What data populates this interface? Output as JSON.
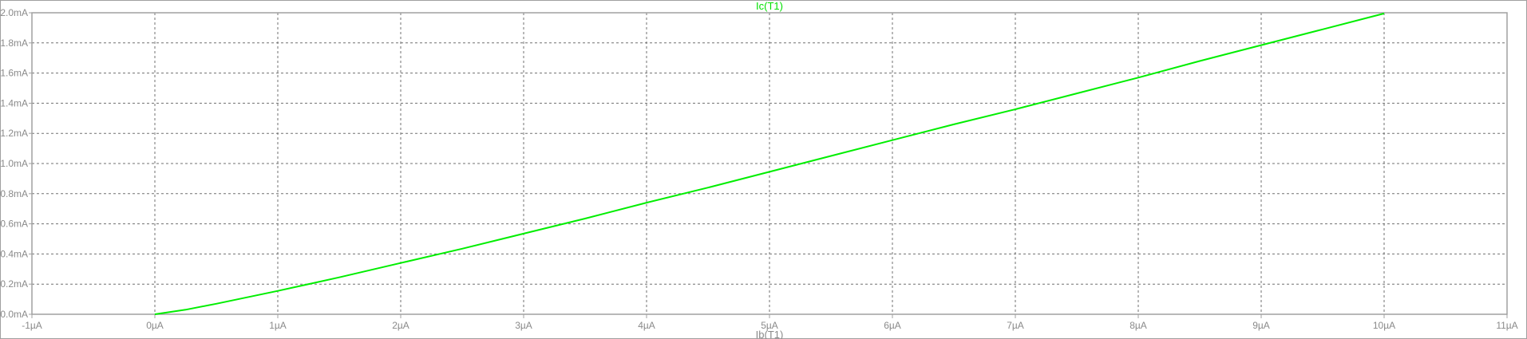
{
  "window": {
    "trace_title": "Ic(T1)",
    "x_axis_title": "Ib(T1)"
  },
  "colors": {
    "background": "#ffffff",
    "frame": "#a0a0a0",
    "grid": "#707070",
    "trace": "#00ee00",
    "text": "#8a8a8a"
  },
  "chart_data": {
    "type": "line",
    "title": "Ic(T1)",
    "xlabel": "Ib(T1)",
    "ylabel": "",
    "xlim": [
      -1,
      11
    ],
    "ylim": [
      0,
      2
    ],
    "grid": true,
    "x_unit": "µA",
    "y_unit": "mA",
    "x_ticks": [
      "-1µA",
      "0µA",
      "1µA",
      "2µA",
      "3µA",
      "4µA",
      "5µA",
      "6µA",
      "7µA",
      "8µA",
      "9µA",
      "10µA",
      "11µA"
    ],
    "y_ticks": [
      "0.0mA",
      "0.2mA",
      "0.4mA",
      "0.6mA",
      "0.8mA",
      "1.0mA",
      "1.2mA",
      "1.4mA",
      "1.6mA",
      "1.8mA",
      "2.0mA"
    ],
    "series": [
      {
        "name": "Ic(T1)",
        "x": [
          0,
          0.25,
          0.5,
          1,
          1.5,
          2,
          2.5,
          3,
          3.5,
          4,
          4.5,
          5,
          5.5,
          6,
          6.5,
          7,
          7.5,
          8,
          8.5,
          9,
          9.5,
          10
        ],
        "y": [
          0,
          0.03,
          0.07,
          0.155,
          0.245,
          0.34,
          0.435,
          0.535,
          0.635,
          0.74,
          0.84,
          0.945,
          1.05,
          1.155,
          1.26,
          1.36,
          1.465,
          1.57,
          1.68,
          1.785,
          1.89,
          1.995
        ]
      }
    ]
  }
}
